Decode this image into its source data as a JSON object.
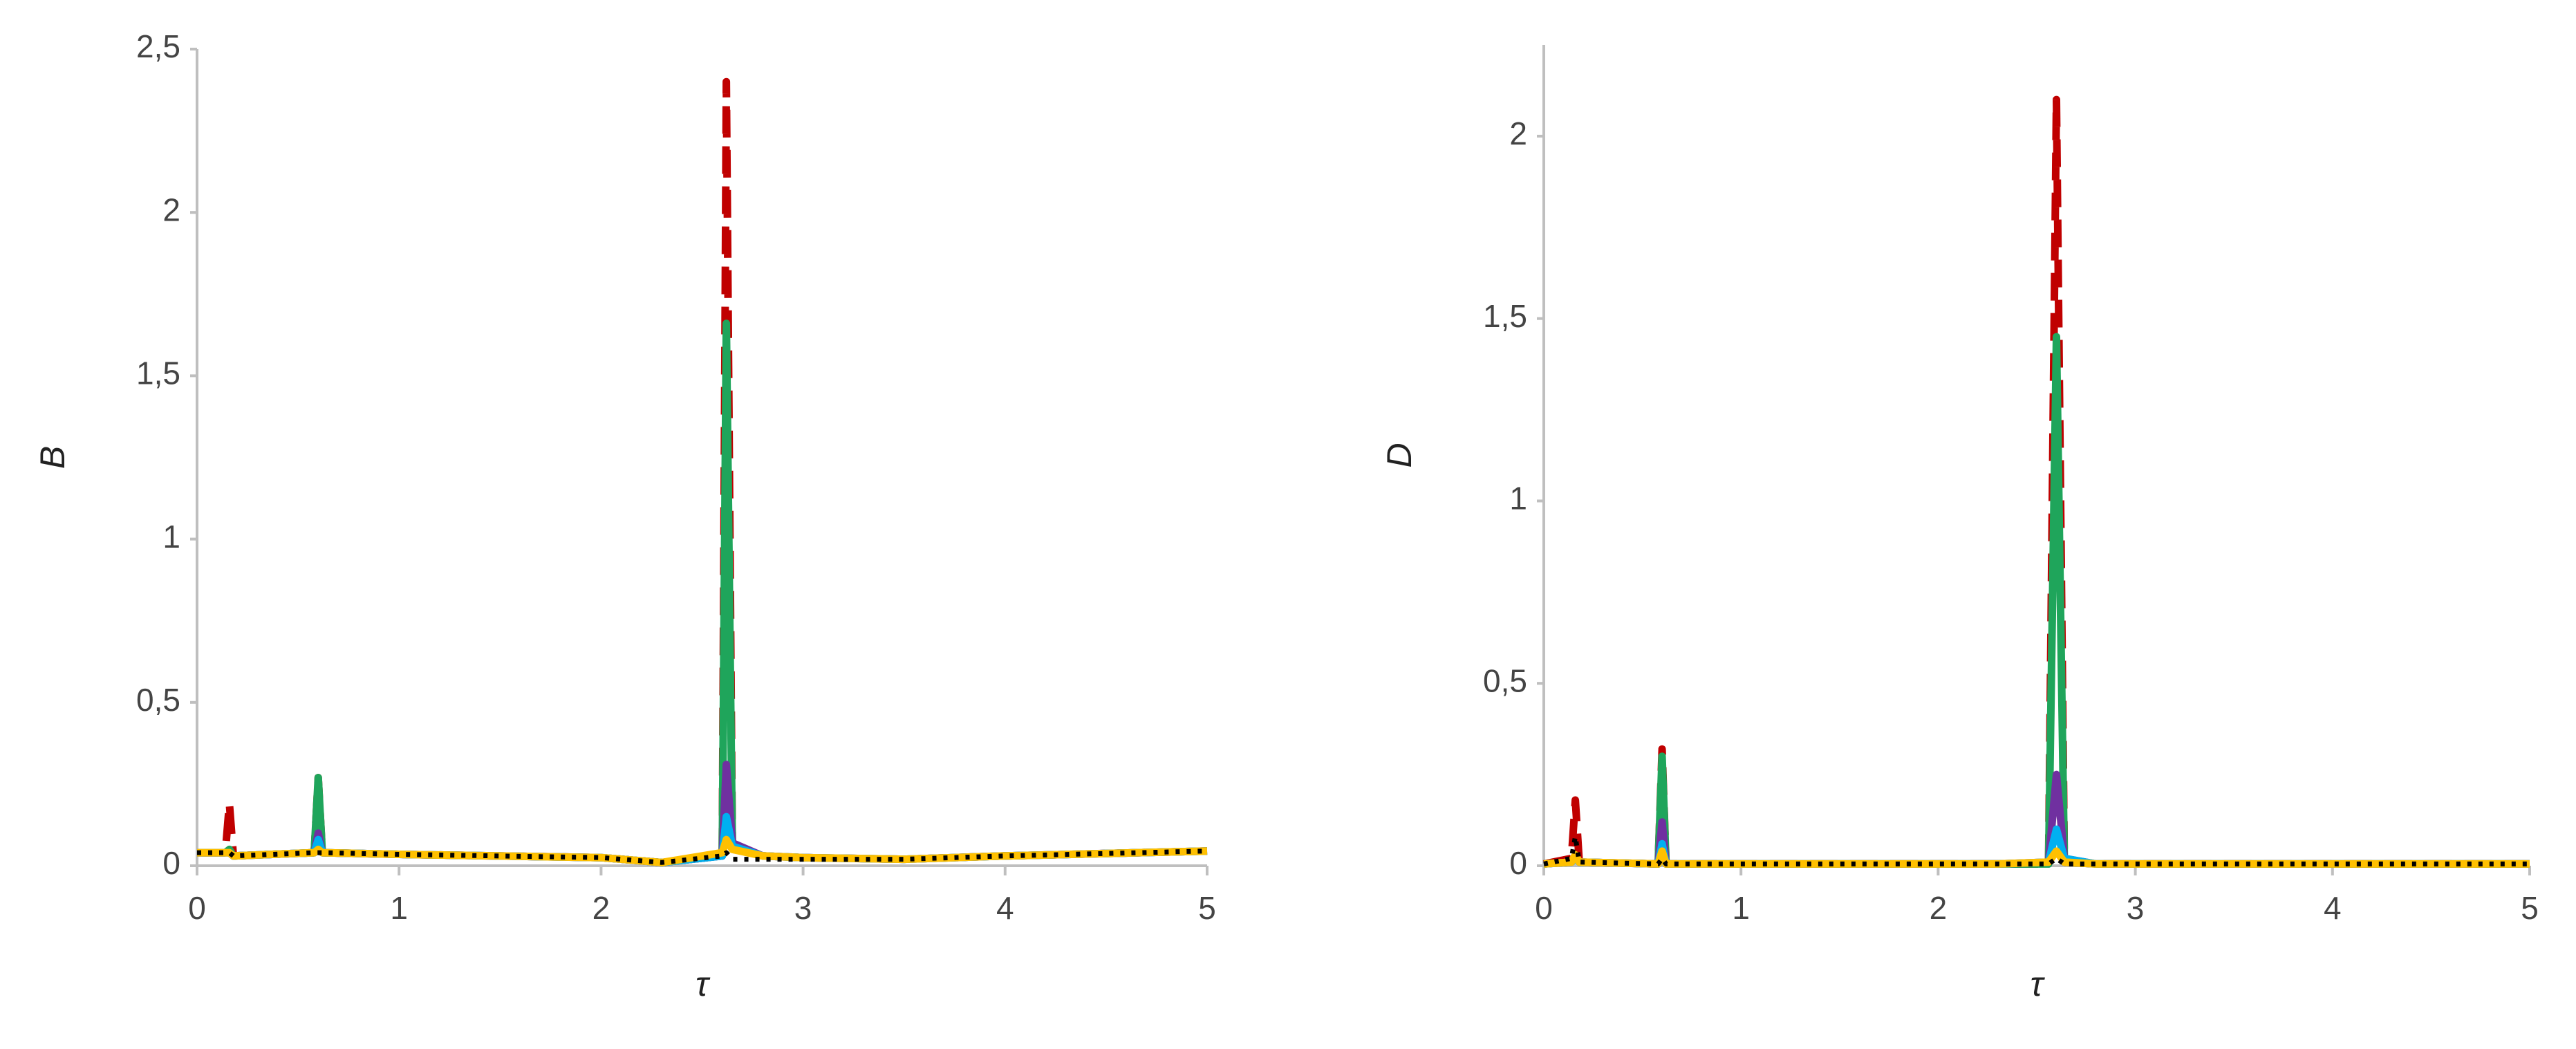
{
  "chart_data": [
    {
      "type": "line",
      "y_label": "B",
      "x_label": "τ",
      "xlim": [
        0,
        5
      ],
      "xticks": [
        0,
        1,
        2,
        3,
        4,
        5
      ],
      "ylim": [
        0,
        2.5
      ],
      "yticks": [
        0,
        {
          "value": 0.5,
          "label": "0,5"
        },
        1,
        {
          "value": 1.5,
          "label": "1,5"
        },
        2,
        {
          "value": 2.5,
          "label": "2,5"
        }
      ],
      "x": [
        0,
        0.14,
        0.16,
        0.18,
        0.58,
        0.6,
        0.62,
        1,
        2,
        2.3,
        2.6,
        2.62,
        2.65,
        2.8,
        3,
        3.5,
        4,
        5
      ],
      "series": [
        {
          "color": "#c00000",
          "dash": true,
          "values": [
            0.04,
            0.04,
            0.19,
            0.03,
            0.04,
            0.27,
            0.04,
            0.035,
            0.025,
            0.01,
            0.03,
            2.4,
            0.06,
            0.03,
            0.025,
            0.02,
            0.03,
            0.045
          ]
        },
        {
          "color": "#1fa55b",
          "values": [
            0.04,
            0.04,
            0.05,
            0.03,
            0.04,
            0.27,
            0.04,
            0.035,
            0.025,
            0.01,
            0.03,
            1.66,
            0.06,
            0.03,
            0.025,
            0.02,
            0.03,
            0.045
          ]
        },
        {
          "color": "#7030a0",
          "values": [
            0.04,
            0.04,
            0.04,
            0.03,
            0.04,
            0.1,
            0.04,
            0.035,
            0.025,
            0.01,
            0.03,
            0.31,
            0.07,
            0.03,
            0.025,
            0.02,
            0.03,
            0.045
          ]
        },
        {
          "color": "#00b0f0",
          "values": [
            0.04,
            0.04,
            0.04,
            0.03,
            0.04,
            0.08,
            0.04,
            0.035,
            0.025,
            0.01,
            0.03,
            0.15,
            0.06,
            0.03,
            0.025,
            0.02,
            0.03,
            0.045
          ]
        },
        {
          "color": "#ffc000",
          "values": [
            0.04,
            0.04,
            0.04,
            0.03,
            0.04,
            0.05,
            0.04,
            0.035,
            0.025,
            0.01,
            0.04,
            0.08,
            0.05,
            0.03,
            0.025,
            0.02,
            0.03,
            0.045
          ]
        },
        {
          "color": "#000000",
          "dotted": true,
          "values": [
            0.04,
            0.04,
            0.04,
            0.03,
            0.04,
            0.04,
            0.04,
            0.035,
            0.025,
            0.01,
            0.03,
            0.04,
            0.02,
            0.02,
            0.02,
            0.02,
            0.03,
            0.045
          ]
        }
      ]
    },
    {
      "type": "line",
      "y_label": "D",
      "x_label": "τ",
      "xlim": [
        0,
        5
      ],
      "xticks": [
        0,
        1,
        2,
        3,
        4,
        5
      ],
      "ylim": [
        0,
        2.25
      ],
      "yticks": [
        0,
        {
          "value": 0.5,
          "label": "0,5"
        },
        1,
        {
          "value": 1.5,
          "label": "1,5"
        },
        2
      ],
      "x": [
        0,
        0.14,
        0.16,
        0.18,
        0.58,
        0.6,
        0.62,
        1,
        2,
        2.3,
        2.56,
        2.6,
        2.64,
        2.8,
        3,
        3.5,
        4,
        5
      ],
      "series": [
        {
          "color": "#c00000",
          "dash": true,
          "values": [
            0.005,
            0.02,
            0.18,
            0.01,
            0.005,
            0.32,
            0.005,
            0.005,
            0.005,
            0.005,
            0.005,
            2.1,
            0.01,
            0.005,
            0.005,
            0.005,
            0.005,
            0.005
          ]
        },
        {
          "color": "#1fa55b",
          "values": [
            0.005,
            0.01,
            0.02,
            0.01,
            0.005,
            0.3,
            0.005,
            0.005,
            0.005,
            0.005,
            0.005,
            1.45,
            0.01,
            0.005,
            0.005,
            0.005,
            0.005,
            0.005
          ]
        },
        {
          "color": "#7030a0",
          "values": [
            0.005,
            0.01,
            0.02,
            0.01,
            0.005,
            0.12,
            0.005,
            0.005,
            0.005,
            0.005,
            0.01,
            0.25,
            0.02,
            0.005,
            0.005,
            0.005,
            0.005,
            0.005
          ]
        },
        {
          "color": "#00b0f0",
          "values": [
            0.005,
            0.01,
            0.02,
            0.01,
            0.005,
            0.06,
            0.005,
            0.005,
            0.005,
            0.005,
            0.01,
            0.1,
            0.02,
            0.005,
            0.005,
            0.005,
            0.005,
            0.005
          ]
        },
        {
          "color": "#ffc000",
          "values": [
            0.005,
            0.01,
            0.03,
            0.01,
            0.005,
            0.04,
            0.005,
            0.005,
            0.005,
            0.005,
            0.01,
            0.04,
            0.01,
            0.005,
            0.005,
            0.005,
            0.005,
            0.005
          ]
        },
        {
          "color": "#000000",
          "dotted": true,
          "values": [
            0.005,
            0.02,
            0.08,
            0.01,
            0.005,
            0.02,
            0.005,
            0.005,
            0.005,
            0.005,
            0.005,
            0.02,
            0.005,
            0.005,
            0.005,
            0.005,
            0.005,
            0.005
          ]
        }
      ]
    }
  ]
}
